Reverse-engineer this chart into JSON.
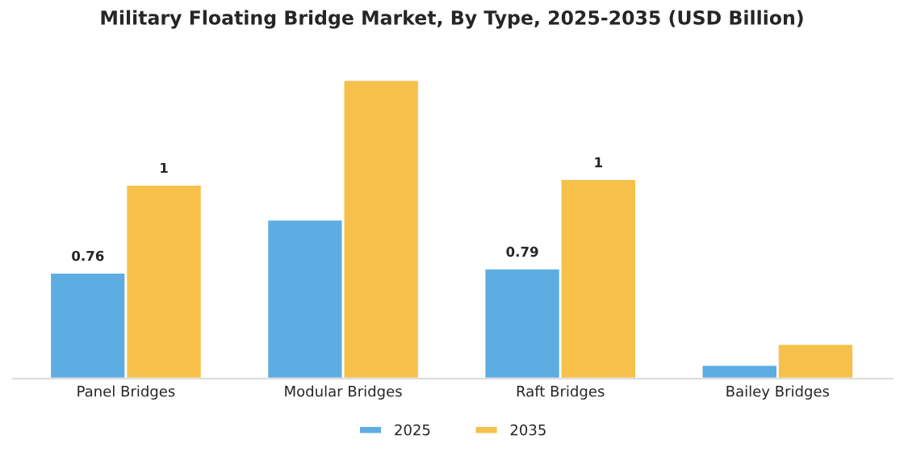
{
  "chart_data": {
    "type": "bar",
    "title": "Military Floating Bridge Market, By Type, 2025-2035 (USD Billion)",
    "categories": [
      "Panel Bridges",
      "Modular Bridges",
      "Raft Bridges",
      "Bailey Bridges"
    ],
    "series": [
      {
        "name": "2025",
        "color": "#5dade2",
        "values": [
          0.76,
          1.14,
          0.79,
          0.1
        ],
        "value_labels": [
          "0.76",
          null,
          "0.79",
          null
        ]
      },
      {
        "name": "2035",
        "color": "#f7c04a",
        "values": [
          1.39,
          2.14,
          1.43,
          0.25
        ],
        "value_labels": [
          "1",
          null,
          "1",
          null
        ]
      }
    ],
    "legend": "bottom",
    "grid": false
  }
}
